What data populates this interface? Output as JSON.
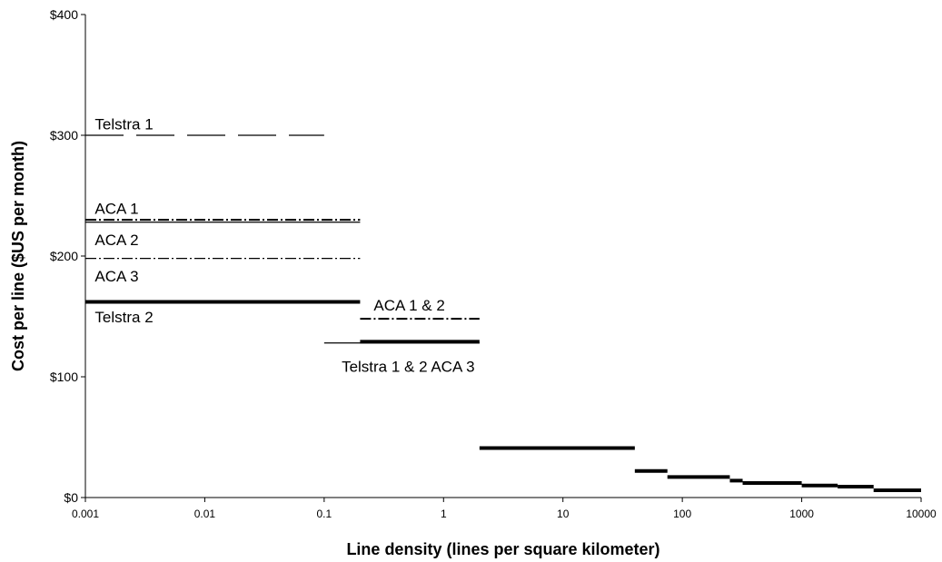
{
  "chart_data": {
    "type": "line",
    "title": "",
    "xlabel": "Line density (lines per square kilometer)",
    "ylabel": "Cost per line ($US per month)",
    "x_scale": "log",
    "xlim": [
      0.001,
      10000
    ],
    "ylim": [
      0,
      400
    ],
    "grid": false,
    "legend": "none",
    "x_ticks": [
      "0.001",
      "0.01",
      "0.1",
      "1",
      "10",
      "100",
      "1000",
      "10000"
    ],
    "y_ticks": [
      "$0",
      "$100",
      "$200",
      "$300",
      "$400"
    ],
    "series": [
      {
        "style": "long-dash",
        "thickness": "thin",
        "segments": [
          {
            "x": [
              0.001,
              0.1
            ],
            "y": 300
          }
        ]
      },
      {
        "style": "dash-dot",
        "thickness": "medium",
        "segments": [
          {
            "x": [
              0.001,
              0.2
            ],
            "y": 230
          },
          {
            "x": [
              0.2,
              2
            ],
            "y": 148
          }
        ]
      },
      {
        "style": "solid",
        "thickness": "thin",
        "segments": [
          {
            "x": [
              0.001,
              0.2
            ],
            "y": 228
          },
          {
            "x": [
              0.1,
              2
            ],
            "y": 128
          }
        ]
      },
      {
        "style": "dash-dot",
        "thickness": "thin",
        "segments": [
          {
            "x": [
              0.001,
              0.2
            ],
            "y": 198
          }
        ]
      },
      {
        "style": "solid",
        "thickness": "thick",
        "segments": [
          {
            "x": [
              0.001,
              0.2
            ],
            "y": 162
          },
          {
            "x": [
              0.2,
              2
            ],
            "y": 129
          },
          {
            "x": [
              2,
              40
            ],
            "y": 41
          },
          {
            "x": [
              40,
              75
            ],
            "y": 22
          },
          {
            "x": [
              75,
              250
            ],
            "y": 17
          },
          {
            "x": [
              250,
              320
            ],
            "y": 14
          },
          {
            "x": [
              320,
              1000
            ],
            "y": 12
          },
          {
            "x": [
              1000,
              2000
            ],
            "y": 10
          },
          {
            "x": [
              2000,
              4000
            ],
            "y": 9
          },
          {
            "x": [
              4000,
              10000
            ],
            "y": 6
          }
        ]
      }
    ],
    "annotations": [
      {
        "text": "Telstra 1",
        "x": 0.0012,
        "y": 305
      },
      {
        "text": "ACA 1",
        "x": 0.0012,
        "y": 235
      },
      {
        "text": "ACA 2",
        "x": 0.0012,
        "y": 209
      },
      {
        "text": "ACA 3",
        "x": 0.0012,
        "y": 179
      },
      {
        "text": "Telstra 2",
        "x": 0.0012,
        "y": 145
      },
      {
        "text": "ACA 1 & 2",
        "x": 0.26,
        "y": 155
      },
      {
        "text": "Telstra 1 & 2  ACA 3",
        "x": 0.14,
        "y": 104
      }
    ]
  }
}
